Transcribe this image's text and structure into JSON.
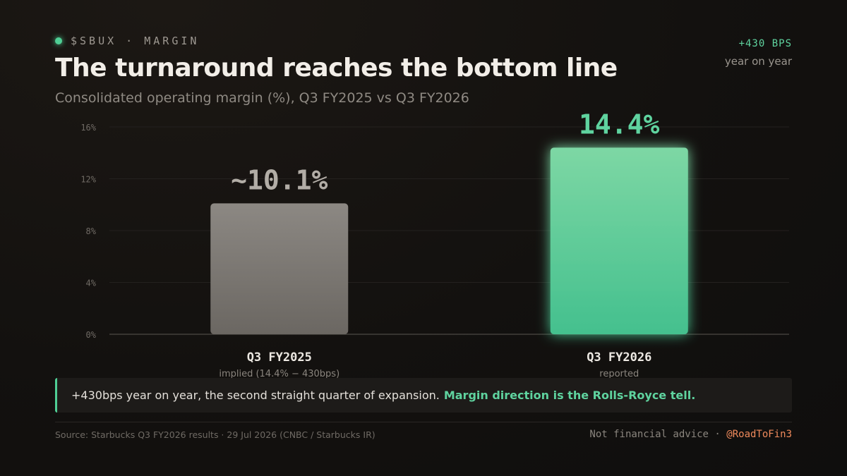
{
  "kicker": {
    "text": "$SBUX · MARGIN"
  },
  "badge": {
    "value": "+430 BPS",
    "label": "year on year"
  },
  "callout": {
    "text": "+430bps year on year, the second straight quarter of expansion.",
    "highlight": "Margin direction is the Rolls-Royce tell."
  },
  "footer": {
    "source": "Source: Starbucks Q3 FY2026 results · 29 Jul 2026 (CNBC / Starbucks IR)",
    "disclaimer": "Not financial advice ·",
    "handle": "@RoadToFin3"
  },
  "colors": {
    "accent": "#4fcf95",
    "bar_prior": "#8a8680",
    "bar_current": "#5ecf98",
    "handle": "#ef8a5c"
  },
  "chart_data": {
    "type": "bar",
    "title": "The turnaround reaches the bottom line",
    "subtitle": "Consolidated operating margin (%), Q3 FY2025 vs Q3 FY2026",
    "categories": [
      "Q3 FY2025",
      "Q3 FY2026"
    ],
    "sublabels": [
      "implied (14.4% − 430bps)",
      "reported"
    ],
    "values": [
      10.1,
      14.4
    ],
    "value_labels": [
      "~10.1%",
      "14.4%"
    ],
    "ylim": [
      0,
      16
    ],
    "yticks": [
      "0%",
      "4%",
      "8%",
      "12%",
      "16%"
    ],
    "grid": true
  }
}
